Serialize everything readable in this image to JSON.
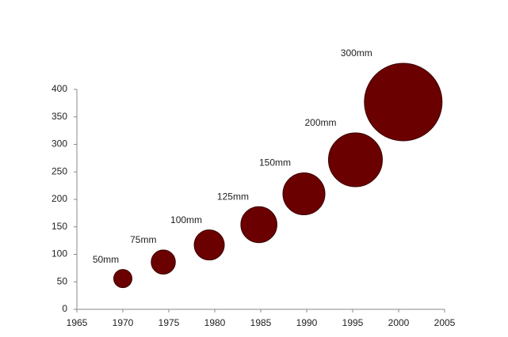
{
  "chart_data": {
    "type": "bubble",
    "x": [
      1970,
      1974.4,
      1979.4,
      1984.8,
      1989.7,
      1995.3,
      2000.5
    ],
    "series": [
      {
        "color": "#6b0000",
        "values": [
          56,
          86,
          117,
          154,
          210,
          272,
          377
        ],
        "sizes": [
          50,
          75,
          100,
          125,
          150,
          200,
          300
        ],
        "value_labels": [
          "50mm",
          "75mm",
          "100mm",
          "125mm",
          "150mm",
          "200mm",
          "300mm"
        ]
      }
    ],
    "xlim": [
      1965,
      2005
    ],
    "xticks": [
      1965,
      1970,
      1975,
      1980,
      1985,
      1990,
      1995,
      2000,
      2005
    ],
    "ylim": [
      0,
      400
    ],
    "yticks": [
      0,
      50,
      100,
      150,
      200,
      250,
      300,
      350,
      400
    ],
    "grid": false
  }
}
